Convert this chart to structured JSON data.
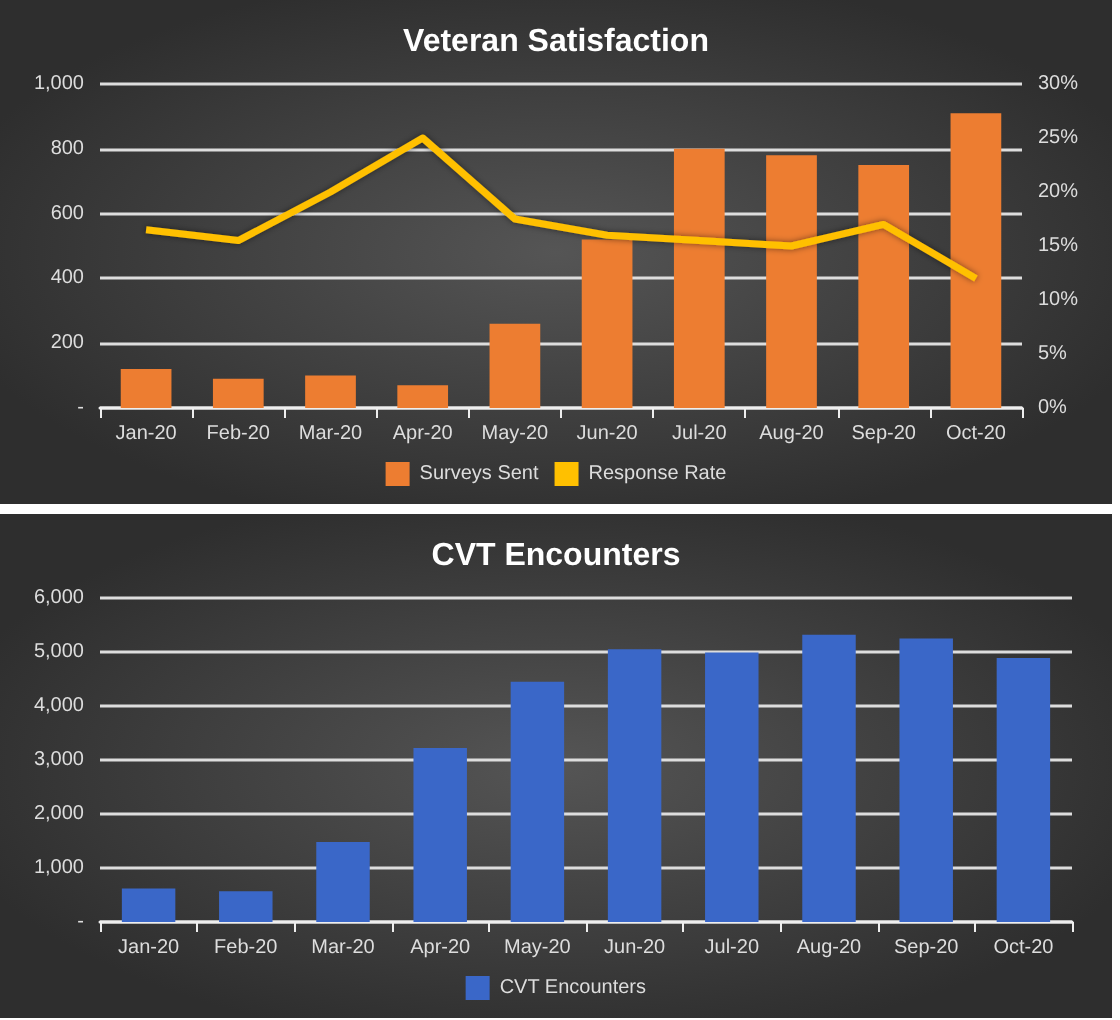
{
  "chart_data": [
    {
      "type": "bar",
      "title": "Veteran Satisfaction",
      "categories": [
        "Jan-20",
        "Feb-20",
        "Mar-20",
        "Apr-20",
        "May-20",
        "Jun-20",
        "Jul-20",
        "Aug-20",
        "Sep-20",
        "Oct-20"
      ],
      "series": [
        {
          "name": "Surveys Sent",
          "type": "bar",
          "color": "#ed7d31",
          "values": [
            120,
            90,
            100,
            70,
            260,
            520,
            800,
            780,
            750,
            910
          ]
        },
        {
          "name": "Response Rate",
          "type": "line",
          "axis": "y2",
          "color": "#ffc000",
          "values": [
            16.5,
            15.5,
            20,
            25,
            17.5,
            16,
            15.5,
            15,
            17,
            12
          ]
        }
      ],
      "ylim": [
        0,
        1000
      ],
      "yticks": [
        {
          "value": 0,
          "label": "-"
        },
        200,
        400,
        600,
        800,
        {
          "value": 1000,
          "label": "1,000"
        }
      ],
      "y2lim": [
        0,
        30
      ],
      "y2ticks": [
        {
          "value": 0,
          "label": "0%"
        },
        {
          "value": 5,
          "label": "5%"
        },
        {
          "value": 10,
          "label": "10%"
        },
        {
          "value": 15,
          "label": "15%"
        },
        {
          "value": 20,
          "label": "20%"
        },
        {
          "value": 25,
          "label": "25%"
        },
        {
          "value": 30,
          "label": "30%"
        }
      ],
      "grid": "y",
      "legend": "bottom",
      "marker": "none"
    },
    {
      "type": "bar",
      "title": "CVT Encounters",
      "categories": [
        "Jan-20",
        "Feb-20",
        "Mar-20",
        "Apr-20",
        "May-20",
        "Jun-20",
        "Jul-20",
        "Aug-20",
        "Sep-20",
        "Oct-20"
      ],
      "series": [
        {
          "name": "CVT Encounters",
          "color": "#3a67c8",
          "values": [
            620,
            570,
            1480,
            3220,
            4450,
            5050,
            4990,
            5320,
            5250,
            4890
          ]
        }
      ],
      "ylim": [
        0,
        6000
      ],
      "yticks": [
        {
          "value": 0,
          "label": "-"
        },
        {
          "value": 1000,
          "label": "1,000"
        },
        {
          "value": 2000,
          "label": "2,000"
        },
        {
          "value": 3000,
          "label": "3,000"
        },
        {
          "value": 4000,
          "label": "4,000"
        },
        {
          "value": 5000,
          "label": "5,000"
        },
        {
          "value": 6000,
          "label": "6,000"
        }
      ],
      "grid": "y",
      "legend": "bottom"
    }
  ]
}
